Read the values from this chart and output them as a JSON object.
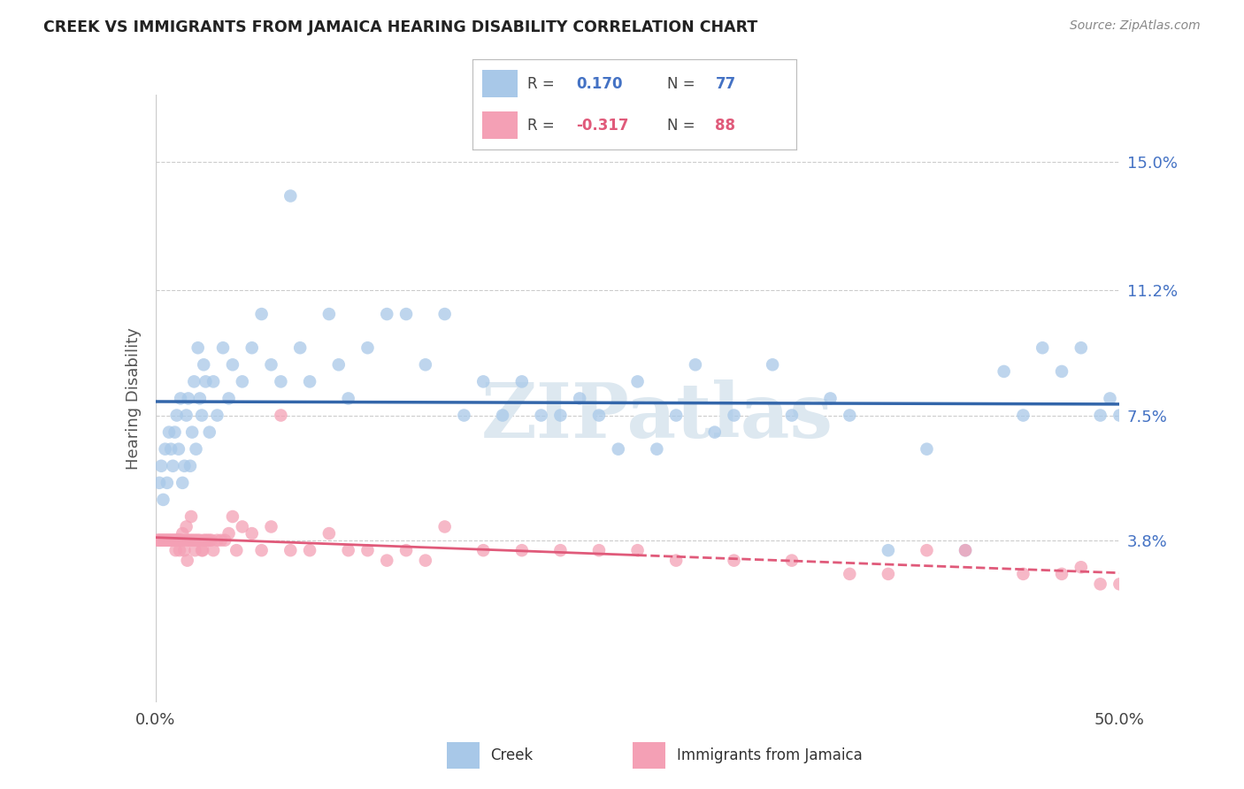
{
  "title": "CREEK VS IMMIGRANTS FROM JAMAICA HEARING DISABILITY CORRELATION CHART",
  "source": "Source: ZipAtlas.com",
  "ylabel": "Hearing Disability",
  "ytick_values": [
    3.8,
    7.5,
    11.2,
    15.0
  ],
  "xlim": [
    0.0,
    50.0
  ],
  "ylim": [
    -1.0,
    17.0
  ],
  "creek_color": "#a8c8e8",
  "jamaica_color": "#f4a0b5",
  "creek_line_color": "#3366aa",
  "jamaica_line_color": "#e05a7a",
  "creek_R": 0.17,
  "creek_N": 77,
  "jamaica_R": -0.317,
  "jamaica_N": 88,
  "legend_label_1": "Creek",
  "legend_label_2": "Immigrants from Jamaica",
  "watermark": "ZIPatlas",
  "creek_x": [
    0.2,
    0.3,
    0.4,
    0.5,
    0.6,
    0.7,
    0.8,
    0.9,
    1.0,
    1.1,
    1.2,
    1.3,
    1.4,
    1.5,
    1.6,
    1.7,
    1.8,
    1.9,
    2.0,
    2.1,
    2.2,
    2.3,
    2.4,
    2.5,
    2.6,
    2.8,
    3.0,
    3.2,
    3.5,
    3.8,
    4.0,
    4.5,
    5.0,
    5.5,
    6.0,
    6.5,
    7.0,
    7.5,
    8.0,
    9.0,
    9.5,
    10.0,
    11.0,
    12.0,
    13.0,
    14.0,
    15.0,
    16.0,
    17.0,
    18.0,
    19.0,
    20.0,
    21.0,
    22.0,
    23.0,
    24.0,
    25.0,
    26.0,
    27.0,
    28.0,
    29.0,
    30.0,
    32.0,
    33.0,
    35.0,
    36.0,
    38.0,
    40.0,
    42.0,
    44.0,
    45.0,
    46.0,
    47.0,
    48.0,
    49.0,
    49.5,
    50.0
  ],
  "creek_y": [
    5.5,
    6.0,
    5.0,
    6.5,
    5.5,
    7.0,
    6.5,
    6.0,
    7.0,
    7.5,
    6.5,
    8.0,
    5.5,
    6.0,
    7.5,
    8.0,
    6.0,
    7.0,
    8.5,
    6.5,
    9.5,
    8.0,
    7.5,
    9.0,
    8.5,
    7.0,
    8.5,
    7.5,
    9.5,
    8.0,
    9.0,
    8.5,
    9.5,
    10.5,
    9.0,
    8.5,
    14.0,
    9.5,
    8.5,
    10.5,
    9.0,
    8.0,
    9.5,
    10.5,
    10.5,
    9.0,
    10.5,
    7.5,
    8.5,
    7.5,
    8.5,
    7.5,
    7.5,
    8.0,
    7.5,
    6.5,
    8.5,
    6.5,
    7.5,
    9.0,
    7.0,
    7.5,
    9.0,
    7.5,
    8.0,
    7.5,
    3.5,
    6.5,
    3.5,
    8.8,
    7.5,
    9.5,
    8.8,
    9.5,
    7.5,
    8.0,
    7.5
  ],
  "jamaica_x": [
    0.1,
    0.15,
    0.2,
    0.25,
    0.3,
    0.35,
    0.4,
    0.45,
    0.5,
    0.55,
    0.6,
    0.65,
    0.7,
    0.75,
    0.8,
    0.85,
    0.9,
    0.95,
    1.0,
    1.05,
    1.1,
    1.15,
    1.2,
    1.25,
    1.3,
    1.35,
    1.4,
    1.5,
    1.6,
    1.7,
    1.8,
    1.9,
    2.0,
    2.1,
    2.2,
    2.3,
    2.4,
    2.5,
    2.6,
    2.7,
    2.8,
    2.9,
    3.0,
    3.2,
    3.4,
    3.6,
    3.8,
    4.0,
    4.2,
    4.5,
    5.0,
    5.5,
    6.0,
    6.5,
    7.0,
    8.0,
    9.0,
    10.0,
    11.0,
    12.0,
    13.0,
    14.0,
    15.0,
    17.0,
    19.0,
    21.0,
    23.0,
    25.0,
    27.0,
    30.0,
    33.0,
    36.0,
    38.0,
    40.0,
    42.0,
    45.0,
    47.0,
    48.0,
    49.0,
    50.0,
    1.05,
    1.15,
    1.25,
    1.55,
    1.65,
    1.85,
    2.05,
    2.45
  ],
  "jamaica_y": [
    3.8,
    3.8,
    3.8,
    3.8,
    3.8,
    3.8,
    3.8,
    3.8,
    3.8,
    3.8,
    3.8,
    3.8,
    3.8,
    3.8,
    3.8,
    3.8,
    3.8,
    3.8,
    3.8,
    3.8,
    3.8,
    3.8,
    3.8,
    3.8,
    3.8,
    3.8,
    4.0,
    3.5,
    4.2,
    3.8,
    3.8,
    3.8,
    3.8,
    3.8,
    3.8,
    3.8,
    3.5,
    3.8,
    3.8,
    3.8,
    3.8,
    3.8,
    3.5,
    3.8,
    3.8,
    3.8,
    4.0,
    4.5,
    3.5,
    4.2,
    4.0,
    3.5,
    4.2,
    7.5,
    3.5,
    3.5,
    4.0,
    3.5,
    3.5,
    3.2,
    3.5,
    3.2,
    4.2,
    3.5,
    3.5,
    3.5,
    3.5,
    3.5,
    3.2,
    3.2,
    3.2,
    2.8,
    2.8,
    3.5,
    3.5,
    2.8,
    2.8,
    3.0,
    2.5,
    2.5,
    3.5,
    3.8,
    3.5,
    3.8,
    3.2,
    4.5,
    3.5,
    3.5
  ]
}
